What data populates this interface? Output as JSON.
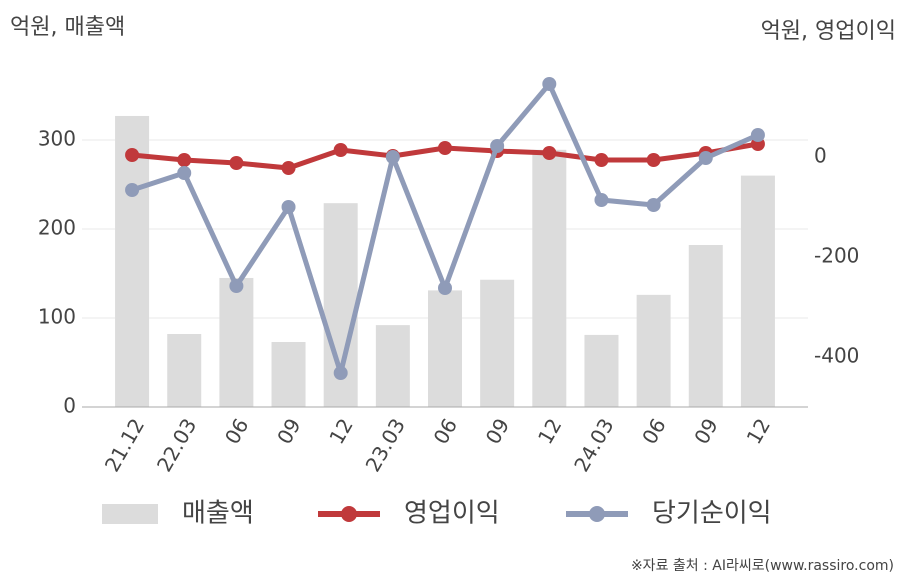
{
  "chart_data": {
    "type": "bar_line",
    "y_label": "억원, 매출액",
    "y2_label": "억원, 영업이익",
    "source": "※자료 출처 : AI라씨로(www.rassiro.com)",
    "categories": [
      "21.12",
      "22.03",
      "06",
      "09",
      "12",
      "23.03",
      "06",
      "09",
      "12",
      "24.03",
      "06",
      "09",
      "12"
    ],
    "series": [
      {
        "name": "매출액",
        "type": "bar",
        "color": "#dcdcdc",
        "values": [
          327,
          82,
          145,
          73,
          229,
          92,
          131,
          143,
          289,
          81,
          126,
          182,
          260
        ]
      },
      {
        "name": "영업이익",
        "type": "line",
        "axis": "y2",
        "color": "#c0393b",
        "values": [
          4,
          -6,
          -12,
          -22,
          14,
          2,
          18,
          12,
          8,
          -6,
          -6,
          8,
          26
        ]
      },
      {
        "name": "당기순이익",
        "type": "line",
        "axis": "y2",
        "color": "#8f9bb8",
        "values": [
          -66,
          -32,
          -258,
          -100,
          -432,
          0,
          -262,
          22,
          146,
          -86,
          -96,
          -2,
          44
        ]
      }
    ],
    "ylim": [
      0,
      400
    ],
    "yticks": [
      0,
      100,
      200,
      300
    ],
    "y2lim": [
      -500,
      212
    ],
    "y2ticks": [
      -400,
      -200,
      0
    ],
    "grid": true
  }
}
